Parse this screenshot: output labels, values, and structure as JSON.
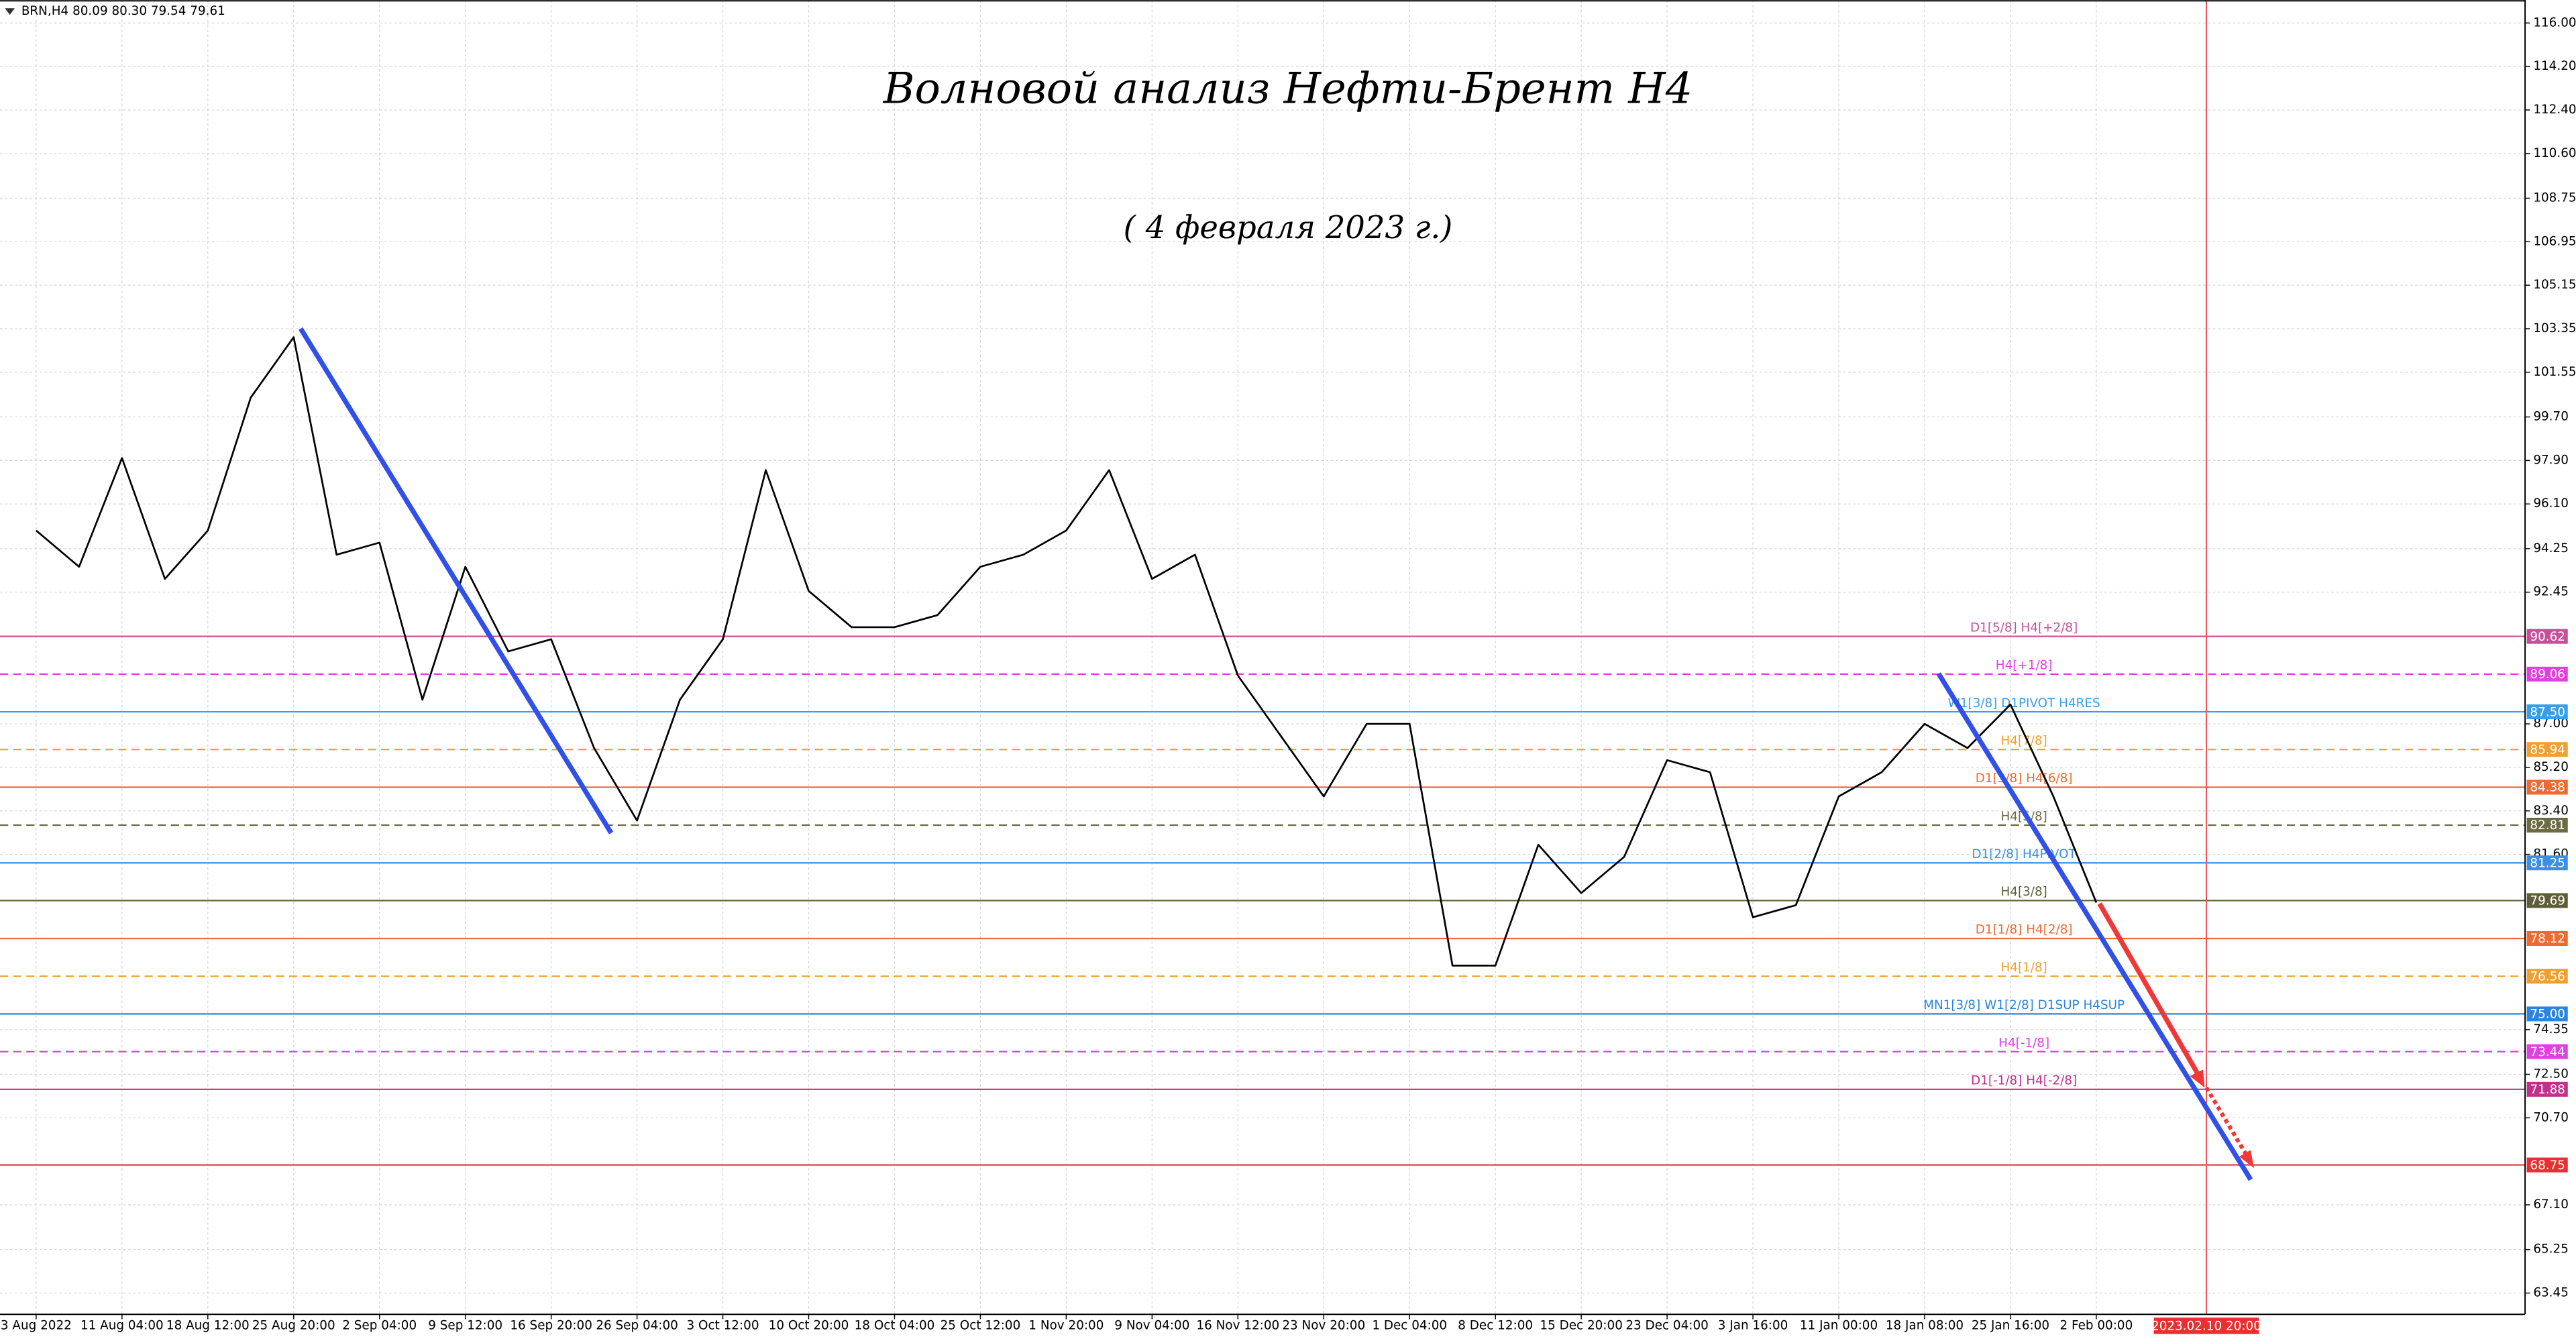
{
  "chart_data": {
    "type": "line",
    "header": "BRN,H4  80.09 80.30 79.54 79.61",
    "title": "Волновой анализ Нефти-Брент H4",
    "subtitle": "( 4 февраля 2023 г.)",
    "marker_label": "2023.02.10 20:00",
    "categories": [
      "3 Aug 2022",
      null,
      "11 Aug 04:00",
      null,
      "18 Aug 12:00",
      null,
      "25 Aug 20:00",
      null,
      "2 Sep 04:00",
      null,
      "9 Sep 12:00",
      null,
      "16 Sep 20:00",
      null,
      "26 Sep 04:00",
      null,
      "3 Oct 12:00",
      null,
      "10 Oct 20:00",
      null,
      "18 Oct 04:00",
      null,
      "25 Oct 12:00",
      null,
      "1 Nov 20:00",
      null,
      "9 Nov 04:00",
      null,
      "16 Nov 12:00",
      null,
      "23 Nov 20:00",
      null,
      "1 Dec 04:00",
      null,
      "8 Dec 12:00",
      null,
      "15 Dec 20:00",
      null,
      "23 Dec 04:00",
      null,
      "3 Jan 16:00",
      null,
      "11 Jan 00:00",
      null,
      "18 Jan 08:00",
      null,
      "25 Jan 16:00",
      null,
      "2 Feb 00:00"
    ],
    "values": [
      95,
      93.5,
      98,
      93,
      95,
      100.5,
      103,
      94,
      94.5,
      88,
      93.5,
      90,
      90.5,
      86,
      83,
      88,
      90.5,
      97.5,
      92.5,
      91,
      91,
      91.5,
      93.5,
      94,
      95,
      97.5,
      93,
      94,
      89,
      86.5,
      84,
      87,
      87,
      77,
      77,
      82,
      80,
      81.5,
      85.5,
      85,
      79,
      79.5,
      84,
      85,
      87,
      86,
      87.8,
      84,
      79.61
    ],
    "color": "#000000",
    "ylim": [
      62.57,
      116.95
    ],
    "yticks": [
      {
        "value": 116,
        "label": "116.00"
      },
      {
        "value": 114.2,
        "label": "114.20"
      },
      {
        "value": 112.4,
        "label": "112.40"
      },
      {
        "value": 110.6,
        "label": "110.60"
      },
      {
        "value": 108.75,
        "label": "108.75"
      },
      {
        "value": 106.95,
        "label": "106.95"
      },
      {
        "value": 105.15,
        "label": "105.15"
      },
      {
        "value": 103.35,
        "label": "103.35"
      },
      {
        "value": 101.55,
        "label": "101.55"
      },
      {
        "value": 99.7,
        "label": "99.70"
      },
      {
        "value": 97.9,
        "label": "97.90"
      },
      {
        "value": 96.1,
        "label": "96.10"
      },
      {
        "value": 94.25,
        "label": "94.25"
      },
      {
        "value": 92.45,
        "label": "92.45"
      },
      {
        "value": 87,
        "label": "87.00"
      },
      {
        "value": 85.2,
        "label": "85.20"
      },
      {
        "value": 83.4,
        "label": "83.40"
      },
      {
        "value": 81.6,
        "label": "81.60"
      },
      {
        "value": 74.35,
        "label": "74.35"
      },
      {
        "value": 72.5,
        "label": "72.50"
      },
      {
        "value": 70.7,
        "label": "70.70"
      },
      {
        "value": 67.1,
        "label": "67.10"
      },
      {
        "value": 65.25,
        "label": "65.25"
      },
      {
        "value": 63.45,
        "label": "63.45"
      }
    ],
    "grid": true,
    "levels": [
      {
        "label": "D1[5/8] H4[+2/8]",
        "value": 90.62,
        "value_label": "90.62",
        "color": "#c8509a",
        "dashed": false
      },
      {
        "label": "H4[+1/8]",
        "value": 89.06,
        "value_label": "89.06",
        "color": "#e040e0",
        "dashed": true
      },
      {
        "label": "W1[3/8] D1PIVOT H4RES",
        "value": 87.5,
        "value_label": "87.50",
        "color": "#3a9ee6",
        "dashed": false
      },
      {
        "label": "H4[7/8]",
        "value": 85.94,
        "value_label": "85.94",
        "color": "#f0a030",
        "dashed": true
      },
      {
        "label": "D1[3/8] H4[6/8]",
        "value": 84.38,
        "value_label": "84.38",
        "color": "#f06a30",
        "dashed": false
      },
      {
        "label": "H4[5/8]",
        "value": 82.81,
        "value_label": "82.81",
        "color": "#6b6b45",
        "dashed": true
      },
      {
        "label": "D1[2/8] H4PIVOT",
        "value": 81.25,
        "value_label": "81.25",
        "color": "#3a90e6",
        "dashed": false
      },
      {
        "label": "H4[3/8]",
        "value": 79.69,
        "value_label": "79.69",
        "color": "#5e5e38",
        "dashed": false
      },
      {
        "label": "D1[1/8] H4[2/8]",
        "value": 78.12,
        "value_label": "78.12",
        "color": "#f06a30",
        "dashed": false
      },
      {
        "label": "H4[1/8]",
        "value": 76.56,
        "value_label": "76.56",
        "color": "#f0a030",
        "dashed": true
      },
      {
        "label": "MN1[3/8] W1[2/8] D1SUP H4SUP",
        "value": 75,
        "value_label": "75.00",
        "color": "#2a84e0",
        "dashed": false
      },
      {
        "label": "H4[-1/8]",
        "value": 73.44,
        "value_label": "73.44",
        "color": "#e040e0",
        "dashed": true
      },
      {
        "label": "D1[-1/8] H4[-2/8]",
        "value": 71.88,
        "value_label": "71.88",
        "color": "#c0308a",
        "dashed": false
      },
      {
        "value": 68.75,
        "value_label": "68.75",
        "color": "#e83030",
        "dashed": false
      }
    ]
  }
}
